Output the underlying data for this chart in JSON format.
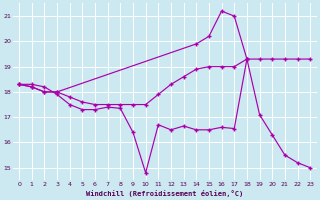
{
  "xlabel": "Windchill (Refroidissement éolien,°C)",
  "bg_color": "#cce8f0",
  "grid_color": "#ffffff",
  "line_color": "#aa00aa",
  "xlim": [
    -0.5,
    23.5
  ],
  "ylim": [
    14.5,
    21.5
  ],
  "xticks": [
    0,
    1,
    2,
    3,
    4,
    5,
    6,
    7,
    8,
    9,
    10,
    11,
    12,
    13,
    14,
    15,
    16,
    17,
    18,
    19,
    20,
    21,
    22,
    23
  ],
  "yticks": [
    15,
    16,
    17,
    18,
    19,
    20,
    21
  ],
  "line1_x": [
    0,
    1,
    2,
    3,
    4,
    5,
    6,
    7,
    8,
    9,
    10,
    11,
    12,
    13,
    14,
    15,
    16,
    17,
    18,
    19,
    20,
    21,
    22,
    23
  ],
  "line1_y": [
    18.3,
    18.3,
    18.2,
    17.9,
    17.5,
    17.3,
    17.3,
    17.4,
    17.35,
    16.4,
    14.8,
    16.7,
    16.5,
    16.65,
    16.5,
    16.5,
    16.6,
    16.55,
    19.3,
    17.1,
    16.3,
    15.5,
    15.2,
    15.0
  ],
  "line2_x": [
    0,
    1,
    2,
    3,
    4,
    5,
    6,
    7,
    8,
    9,
    10,
    11,
    12,
    13,
    14,
    15,
    16,
    17,
    18,
    19,
    20,
    21,
    22,
    23
  ],
  "line2_y": [
    18.3,
    18.2,
    18.0,
    18.0,
    17.8,
    17.6,
    17.5,
    17.5,
    17.5,
    17.5,
    17.5,
    17.9,
    18.3,
    18.6,
    18.9,
    19.0,
    19.0,
    19.0,
    19.3,
    19.3,
    19.3,
    19.3,
    19.3,
    19.3
  ],
  "line3_x": [
    0,
    1,
    2,
    3,
    14,
    15,
    16,
    17,
    18
  ],
  "line3_y": [
    18.3,
    18.2,
    18.0,
    18.0,
    19.9,
    20.2,
    21.2,
    21.0,
    19.3
  ]
}
